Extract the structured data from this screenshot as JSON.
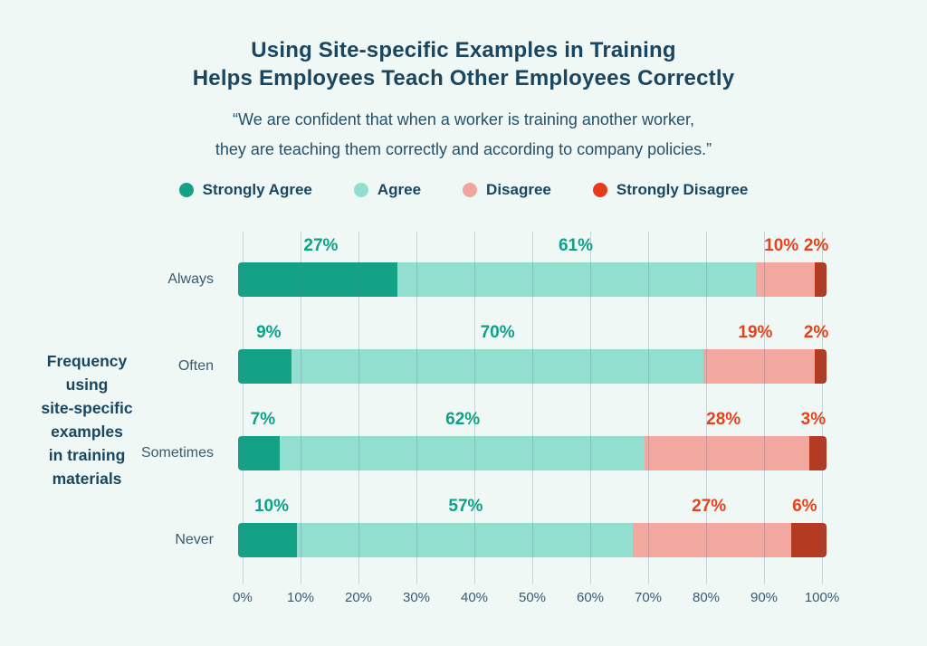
{
  "title": {
    "line1": "Using Site-specific Examples in Training",
    "line2": "Helps Employees Teach Other Employees Correctly"
  },
  "quote": {
    "line1": "“We are confident that when a worker is training another worker,",
    "line2": "they are teaching them correctly and according to company policies.”"
  },
  "colors": {
    "background": "#eff8f5",
    "heading_navy": "#1b4660",
    "body_navy": "#3a5b71",
    "teal_label": "#0da287",
    "red_label": "#e8421c"
  },
  "y_axis_label_lines": [
    "Frequency",
    "using",
    "site-specific",
    "examples",
    "in training",
    "materials"
  ],
  "chart_data": {
    "type": "bar",
    "orientation": "horizontal",
    "stacked": true,
    "title": "Using Site-specific Examples in Training Helps Employees Teach Other Employees Correctly",
    "ylabel": "Frequency using site-specific examples in training materials",
    "xlabel": "",
    "xlim": [
      0,
      100
    ],
    "grid": true,
    "legend_position": "top",
    "categories": [
      "Always",
      "Often",
      "Sometimes",
      "Never"
    ],
    "series": [
      {
        "name": "Strongly Agree",
        "values": [
          27,
          9,
          7,
          10
        ],
        "bar_color": "#14a287",
        "label_color": "#0da287"
      },
      {
        "name": "Agree",
        "values": [
          61,
          70,
          62,
          57
        ],
        "bar_color": "#92dfd0",
        "label_color": "#0da287"
      },
      {
        "name": "Disagree",
        "values": [
          10,
          19,
          28,
          27
        ],
        "bar_color": "#f2a89e",
        "label_color": "#e8421c"
      },
      {
        "name": "Strongly Disagree",
        "values": [
          2,
          2,
          3,
          6
        ],
        "bar_color": "#b53a22",
        "label_color": "#e8421c"
      }
    ],
    "legend": [
      {
        "label": "Strongly Agree",
        "color": "#14a287"
      },
      {
        "label": "Agree",
        "color": "#92dfd0"
      },
      {
        "label": "Disagree",
        "color": "#f0a69c"
      },
      {
        "label": "Strongly Disagree",
        "color": "#e8391a"
      }
    ],
    "x_ticks": [
      "0%",
      "10%",
      "20%",
      "30%",
      "40%",
      "50%",
      "60%",
      "70%",
      "80%",
      "90%",
      "100%"
    ]
  }
}
